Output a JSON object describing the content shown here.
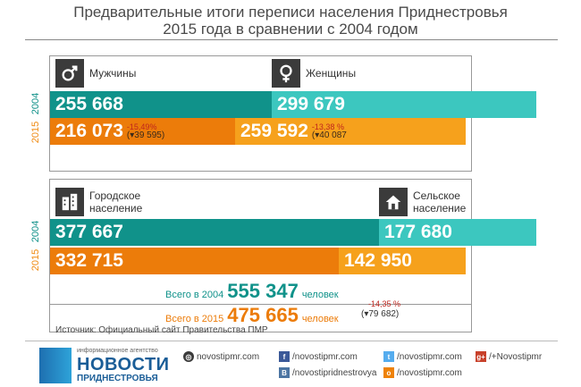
{
  "header": {
    "title_line1": "Предварительные итоги переписи населения Приднестровья",
    "title_line2": "2015 года в сравнении с 2004 годом"
  },
  "colors": {
    "teal_dark": "#10928a",
    "teal_light": "#3cc7bf",
    "orange_dark": "#ec7c0a",
    "orange_light": "#f6a11c"
  },
  "chart_data": [
    {
      "type": "bar",
      "stacked": true,
      "orientation": "horizontal",
      "categories": [
        "2004",
        "2015"
      ],
      "series": [
        {
          "name": "Мужчины",
          "icon": "male-icon",
          "values": [
            255668,
            216073
          ],
          "labels": [
            "255 668",
            "216 073"
          ],
          "change": {
            "pct": "-15,49%",
            "abs": "(▾39 595)"
          }
        },
        {
          "name": "Женщины",
          "icon": "female-icon",
          "values": [
            299679,
            259592
          ],
          "labels": [
            "299 679",
            "259 592"
          ],
          "change": {
            "pct": "-13,38 %",
            "abs": "(▾40 087"
          }
        }
      ]
    },
    {
      "type": "bar",
      "stacked": true,
      "orientation": "horizontal",
      "categories": [
        "2004",
        "2015"
      ],
      "series": [
        {
          "name": "Городское население",
          "icon": "city-icon",
          "label_lines": [
            "Городское",
            "население"
          ],
          "values": [
            377667,
            332715
          ],
          "labels": [
            "377 667",
            "332 715"
          ]
        },
        {
          "name": "Сельское население",
          "icon": "house-icon",
          "label_lines": [
            "Сельское",
            "население"
          ],
          "values": [
            177680,
            142950
          ],
          "labels": [
            "177 680",
            "142 950"
          ]
        }
      ]
    }
  ],
  "year_labels": {
    "y2004": "2004",
    "y2015": "2015"
  },
  "totals": {
    "y2004": {
      "prefix": "Всего в 2004",
      "value": "555 347",
      "unit": "человек"
    },
    "y2015": {
      "prefix": "Всего в 2015",
      "value": "475 665",
      "unit": "человек",
      "change_pct": "-14,35 %",
      "change_abs": "(▾79 682)"
    }
  },
  "footer": {
    "source": "Источник:  Официальный сайт Правительства ПМР",
    "logo_small": "информационное агентство",
    "logo_big": "НОВОСТИ",
    "logo_sub": "ПРИДНЕСТРОВЬЯ",
    "site": "novostipmr.com",
    "links": [
      {
        "icon": "facebook-icon",
        "glyph": "f",
        "color": "#3b5998",
        "text": "/novostipmr.com"
      },
      {
        "icon": "twitter-icon",
        "glyph": "t",
        "color": "#55acee",
        "text": "/novostipmr.com"
      },
      {
        "icon": "googleplus-icon",
        "glyph": "g+",
        "color": "#c8412b",
        "text": "/+Novostipmr"
      },
      {
        "icon": "vk-icon",
        "glyph": "В",
        "color": "#4c75a3",
        "text": "/novostipridnestrovya"
      },
      {
        "icon": "odnoklassniki-icon",
        "glyph": "о",
        "color": "#ee8208",
        "text": "/novostipmr.com"
      }
    ]
  }
}
